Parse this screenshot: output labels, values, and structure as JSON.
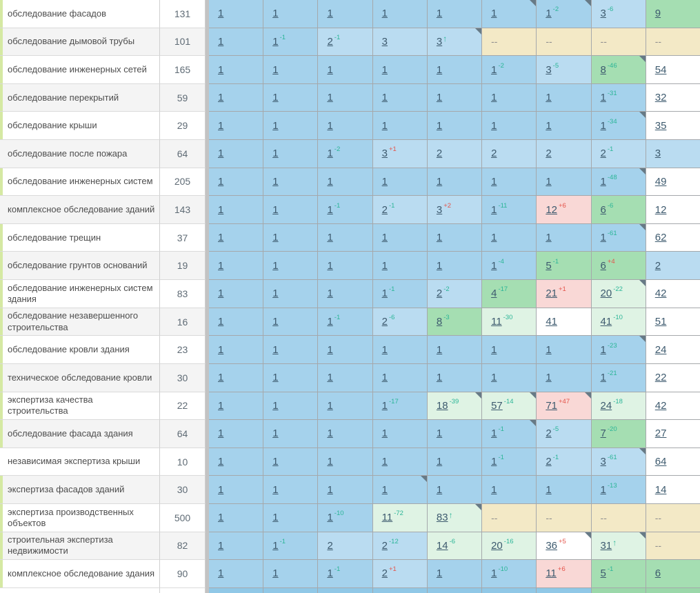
{
  "palette": {
    "row_white": "#ffffff",
    "row_grey": "#f4f4f4",
    "tag_green": "#d5e9a3",
    "sup_green": "#2bb597",
    "sup_red": "#e4544a",
    "cells": {
      "b1": "#a5d2ec",
      "b2": "#badcf1",
      "g1": "#a5deb2",
      "g2": "#dff3e4",
      "pk": "#f9d8d6",
      "tn": "#f3e9c6",
      "wh": "#ffffff",
      "b0": "#90c8e7",
      "g0": "#9bd8aa"
    }
  },
  "table": {
    "no_data_symbol": "--",
    "rows": [
      {
        "keyword": "обследование фасадов",
        "volume": "131",
        "shade": "white",
        "tag": true,
        "cells": [
          {
            "v": "1",
            "bg": "b1"
          },
          {
            "v": "1",
            "bg": "b1"
          },
          {
            "v": "1",
            "bg": "b1"
          },
          {
            "v": "1",
            "bg": "b1"
          },
          {
            "v": "1",
            "bg": "b1"
          },
          {
            "v": "1",
            "bg": "b1",
            "note": true
          },
          {
            "v": "1",
            "bg": "b1",
            "sup": "-2",
            "note": true
          },
          {
            "v": "3",
            "bg": "b2",
            "sup": "-6"
          },
          {
            "v": "9",
            "bg": "g1"
          }
        ]
      },
      {
        "keyword": "обследование дымовой трубы",
        "volume": "101",
        "shade": "grey",
        "tag": true,
        "cells": [
          {
            "v": "1",
            "bg": "b1"
          },
          {
            "v": "1",
            "bg": "b1",
            "sup": "-1"
          },
          {
            "v": "2",
            "bg": "b2",
            "sup": "-1"
          },
          {
            "v": "3",
            "bg": "b2"
          },
          {
            "v": "3",
            "bg": "b2",
            "sup": "↑",
            "note": true
          },
          {
            "v": "--",
            "bg": "tn"
          },
          {
            "v": "--",
            "bg": "tn"
          },
          {
            "v": "--",
            "bg": "tn"
          },
          {
            "v": "--",
            "bg": "tn"
          }
        ]
      },
      {
        "keyword": "обследование инженерных сетей",
        "volume": "165",
        "shade": "white",
        "tag": true,
        "cells": [
          {
            "v": "1",
            "bg": "b1"
          },
          {
            "v": "1",
            "bg": "b1"
          },
          {
            "v": "1",
            "bg": "b1"
          },
          {
            "v": "1",
            "bg": "b1"
          },
          {
            "v": "1",
            "bg": "b1"
          },
          {
            "v": "1",
            "bg": "b1",
            "sup": "-2"
          },
          {
            "v": "3",
            "bg": "b2",
            "sup": "-5"
          },
          {
            "v": "8",
            "bg": "g1",
            "sup": "-46",
            "note": true
          },
          {
            "v": "54",
            "bg": "wh"
          }
        ]
      },
      {
        "keyword": "обследование перекрытий",
        "volume": "59",
        "shade": "grey",
        "tag": true,
        "cells": [
          {
            "v": "1",
            "bg": "b1"
          },
          {
            "v": "1",
            "bg": "b1"
          },
          {
            "v": "1",
            "bg": "b1"
          },
          {
            "v": "1",
            "bg": "b1"
          },
          {
            "v": "1",
            "bg": "b1"
          },
          {
            "v": "1",
            "bg": "b1"
          },
          {
            "v": "1",
            "bg": "b1"
          },
          {
            "v": "1",
            "bg": "b1",
            "sup": "-31"
          },
          {
            "v": "32",
            "bg": "wh"
          }
        ]
      },
      {
        "keyword": "обследование крыши",
        "volume": "29",
        "shade": "white",
        "tag": true,
        "cells": [
          {
            "v": "1",
            "bg": "b1"
          },
          {
            "v": "1",
            "bg": "b1"
          },
          {
            "v": "1",
            "bg": "b1"
          },
          {
            "v": "1",
            "bg": "b1"
          },
          {
            "v": "1",
            "bg": "b1"
          },
          {
            "v": "1",
            "bg": "b1"
          },
          {
            "v": "1",
            "bg": "b1"
          },
          {
            "v": "1",
            "bg": "b1",
            "sup": "-34",
            "note": true
          },
          {
            "v": "35",
            "bg": "wh"
          }
        ]
      },
      {
        "keyword": "обследование после пожара",
        "volume": "64",
        "shade": "grey",
        "tag": false,
        "cells": [
          {
            "v": "1",
            "bg": "b1"
          },
          {
            "v": "1",
            "bg": "b1"
          },
          {
            "v": "1",
            "bg": "b1",
            "sup": "-2"
          },
          {
            "v": "3",
            "bg": "b2",
            "sup": "+1"
          },
          {
            "v": "2",
            "bg": "b2"
          },
          {
            "v": "2",
            "bg": "b2"
          },
          {
            "v": "2",
            "bg": "b2"
          },
          {
            "v": "2",
            "bg": "b2",
            "sup": "-1"
          },
          {
            "v": "3",
            "bg": "b2"
          }
        ]
      },
      {
        "keyword": "обследование инженерных систем",
        "volume": "205",
        "shade": "white",
        "tag": true,
        "cells": [
          {
            "v": "1",
            "bg": "b1"
          },
          {
            "v": "1",
            "bg": "b1"
          },
          {
            "v": "1",
            "bg": "b1"
          },
          {
            "v": "1",
            "bg": "b1"
          },
          {
            "v": "1",
            "bg": "b1"
          },
          {
            "v": "1",
            "bg": "b1"
          },
          {
            "v": "1",
            "bg": "b1"
          },
          {
            "v": "1",
            "bg": "b1",
            "sup": "-48",
            "note": true
          },
          {
            "v": "49",
            "bg": "wh"
          }
        ]
      },
      {
        "keyword": "комплексное обследование зданий",
        "volume": "143",
        "shade": "grey",
        "tag": false,
        "cells": [
          {
            "v": "1",
            "bg": "b1"
          },
          {
            "v": "1",
            "bg": "b1"
          },
          {
            "v": "1",
            "bg": "b1",
            "sup": "-1"
          },
          {
            "v": "2",
            "bg": "b2",
            "sup": "-1"
          },
          {
            "v": "3",
            "bg": "b2",
            "sup": "+2"
          },
          {
            "v": "1",
            "bg": "b1",
            "sup": "-11"
          },
          {
            "v": "12",
            "bg": "pk",
            "sup": "+6"
          },
          {
            "v": "6",
            "bg": "g1",
            "sup": "-6"
          },
          {
            "v": "12",
            "bg": "wh"
          }
        ]
      },
      {
        "keyword": "обследование трещин",
        "volume": "37",
        "shade": "white",
        "tag": true,
        "cells": [
          {
            "v": "1",
            "bg": "b1"
          },
          {
            "v": "1",
            "bg": "b1"
          },
          {
            "v": "1",
            "bg": "b1"
          },
          {
            "v": "1",
            "bg": "b1"
          },
          {
            "v": "1",
            "bg": "b1"
          },
          {
            "v": "1",
            "bg": "b1"
          },
          {
            "v": "1",
            "bg": "b1"
          },
          {
            "v": "1",
            "bg": "b1",
            "sup": "-61",
            "note": true
          },
          {
            "v": "62",
            "bg": "wh"
          }
        ]
      },
      {
        "keyword": "обследование грунтов оснований",
        "volume": "19",
        "shade": "grey",
        "tag": true,
        "cells": [
          {
            "v": "1",
            "bg": "b1"
          },
          {
            "v": "1",
            "bg": "b1"
          },
          {
            "v": "1",
            "bg": "b1"
          },
          {
            "v": "1",
            "bg": "b1"
          },
          {
            "v": "1",
            "bg": "b1"
          },
          {
            "v": "1",
            "bg": "b1",
            "sup": "-4"
          },
          {
            "v": "5",
            "bg": "g1",
            "sup": "-1"
          },
          {
            "v": "6",
            "bg": "g1",
            "sup": "+4"
          },
          {
            "v": "2",
            "bg": "b2"
          }
        ]
      },
      {
        "keyword": "обследование инженерных систем здания",
        "volume": "83",
        "shade": "white",
        "tag": true,
        "cells": [
          {
            "v": "1",
            "bg": "b1"
          },
          {
            "v": "1",
            "bg": "b1"
          },
          {
            "v": "1",
            "bg": "b1"
          },
          {
            "v": "1",
            "bg": "b1",
            "sup": "-1"
          },
          {
            "v": "2",
            "bg": "b2",
            "sup": "-2"
          },
          {
            "v": "4",
            "bg": "g1",
            "sup": "-17"
          },
          {
            "v": "21",
            "bg": "pk",
            "sup": "+1"
          },
          {
            "v": "20",
            "bg": "g2",
            "sup": "-22",
            "note": true
          },
          {
            "v": "42",
            "bg": "wh"
          }
        ]
      },
      {
        "keyword": "обследование незавершенного строительства",
        "volume": "16",
        "shade": "grey",
        "tag": true,
        "cells": [
          {
            "v": "1",
            "bg": "b1"
          },
          {
            "v": "1",
            "bg": "b1"
          },
          {
            "v": "1",
            "bg": "b1",
            "sup": "-1"
          },
          {
            "v": "2",
            "bg": "b2",
            "sup": "-6"
          },
          {
            "v": "8",
            "bg": "g1",
            "sup": "-3"
          },
          {
            "v": "11",
            "bg": "g2",
            "sup": "-30"
          },
          {
            "v": "41",
            "bg": "wh"
          },
          {
            "v": "41",
            "bg": "g2",
            "sup": "-10"
          },
          {
            "v": "51",
            "bg": "wh"
          }
        ]
      },
      {
        "keyword": "обследование кровли здания",
        "volume": "23",
        "shade": "white",
        "tag": true,
        "cells": [
          {
            "v": "1",
            "bg": "b1"
          },
          {
            "v": "1",
            "bg": "b1"
          },
          {
            "v": "1",
            "bg": "b1"
          },
          {
            "v": "1",
            "bg": "b1"
          },
          {
            "v": "1",
            "bg": "b1"
          },
          {
            "v": "1",
            "bg": "b1"
          },
          {
            "v": "1",
            "bg": "b1"
          },
          {
            "v": "1",
            "bg": "b1",
            "sup": "-23",
            "note": true
          },
          {
            "v": "24",
            "bg": "wh"
          }
        ]
      },
      {
        "keyword": "техническое обследование кровли",
        "volume": "30",
        "shade": "grey",
        "tag": true,
        "cells": [
          {
            "v": "1",
            "bg": "b1"
          },
          {
            "v": "1",
            "bg": "b1"
          },
          {
            "v": "1",
            "bg": "b1"
          },
          {
            "v": "1",
            "bg": "b1"
          },
          {
            "v": "1",
            "bg": "b1"
          },
          {
            "v": "1",
            "bg": "b1"
          },
          {
            "v": "1",
            "bg": "b1"
          },
          {
            "v": "1",
            "bg": "b1",
            "sup": "-21"
          },
          {
            "v": "22",
            "bg": "wh"
          }
        ]
      },
      {
        "keyword": "экспертиза качества строительства",
        "volume": "22",
        "shade": "white",
        "tag": true,
        "cells": [
          {
            "v": "1",
            "bg": "b1"
          },
          {
            "v": "1",
            "bg": "b1"
          },
          {
            "v": "1",
            "bg": "b1"
          },
          {
            "v": "1",
            "bg": "b1",
            "sup": "-17"
          },
          {
            "v": "18",
            "bg": "g2",
            "sup": "-39",
            "note": true
          },
          {
            "v": "57",
            "bg": "g2",
            "sup": "-14",
            "note": true
          },
          {
            "v": "71",
            "bg": "pk",
            "sup": "+47",
            "note": true
          },
          {
            "v": "24",
            "bg": "g2",
            "sup": "-18"
          },
          {
            "v": "42",
            "bg": "wh"
          }
        ]
      },
      {
        "keyword": "обследование фасада здания",
        "volume": "64",
        "shade": "grey",
        "tag": true,
        "cells": [
          {
            "v": "1",
            "bg": "b1"
          },
          {
            "v": "1",
            "bg": "b1"
          },
          {
            "v": "1",
            "bg": "b1"
          },
          {
            "v": "1",
            "bg": "b1"
          },
          {
            "v": "1",
            "bg": "b1"
          },
          {
            "v": "1",
            "bg": "b1",
            "sup": "-1",
            "note": true
          },
          {
            "v": "2",
            "bg": "b2",
            "sup": "-5"
          },
          {
            "v": "7",
            "bg": "g1",
            "sup": "-20"
          },
          {
            "v": "27",
            "bg": "wh"
          }
        ]
      },
      {
        "keyword": "независимая экспертиза крыши",
        "volume": "10",
        "shade": "white",
        "tag": false,
        "cells": [
          {
            "v": "1",
            "bg": "b1"
          },
          {
            "v": "1",
            "bg": "b1"
          },
          {
            "v": "1",
            "bg": "b1"
          },
          {
            "v": "1",
            "bg": "b1"
          },
          {
            "v": "1",
            "bg": "b1"
          },
          {
            "v": "1",
            "bg": "b1",
            "sup": "-1"
          },
          {
            "v": "2",
            "bg": "b2",
            "sup": "-1"
          },
          {
            "v": "3",
            "bg": "b2",
            "sup": "-61",
            "note": true
          },
          {
            "v": "64",
            "bg": "wh"
          }
        ]
      },
      {
        "keyword": "экспертиза фасадов зданий",
        "volume": "30",
        "shade": "grey",
        "tag": true,
        "cells": [
          {
            "v": "1",
            "bg": "b1"
          },
          {
            "v": "1",
            "bg": "b1"
          },
          {
            "v": "1",
            "bg": "b1"
          },
          {
            "v": "1",
            "bg": "b1",
            "note": true
          },
          {
            "v": "1",
            "bg": "b1"
          },
          {
            "v": "1",
            "bg": "b1"
          },
          {
            "v": "1",
            "bg": "b1"
          },
          {
            "v": "1",
            "bg": "b1",
            "sup": "-13"
          },
          {
            "v": "14",
            "bg": "wh"
          }
        ]
      },
      {
        "keyword": "экспертиза производственных объектов",
        "volume": "500",
        "shade": "white",
        "tag": true,
        "cells": [
          {
            "v": "1",
            "bg": "b1"
          },
          {
            "v": "1",
            "bg": "b1"
          },
          {
            "v": "1",
            "bg": "b1",
            "sup": "-10"
          },
          {
            "v": "11",
            "bg": "g2",
            "sup": "-72"
          },
          {
            "v": "83",
            "bg": "g2",
            "sup": "↑",
            "note": true
          },
          {
            "v": "--",
            "bg": "tn"
          },
          {
            "v": "--",
            "bg": "tn"
          },
          {
            "v": "--",
            "bg": "tn"
          },
          {
            "v": "--",
            "bg": "tn"
          }
        ]
      },
      {
        "keyword": "строительная экспертиза недвижимости",
        "volume": "82",
        "shade": "grey",
        "tag": true,
        "cells": [
          {
            "v": "1",
            "bg": "b1"
          },
          {
            "v": "1",
            "bg": "b1",
            "sup": "-1"
          },
          {
            "v": "2",
            "bg": "b2"
          },
          {
            "v": "2",
            "bg": "b2",
            "sup": "-12"
          },
          {
            "v": "14",
            "bg": "g2",
            "sup": "-6"
          },
          {
            "v": "20",
            "bg": "g2",
            "sup": "-16"
          },
          {
            "v": "36",
            "bg": "wh",
            "sup": "+5",
            "note": true
          },
          {
            "v": "31",
            "bg": "g2",
            "sup": "↑",
            "note": true
          },
          {
            "v": "--",
            "bg": "tn"
          }
        ]
      },
      {
        "keyword": "комплексное обследование здания",
        "volume": "90",
        "shade": "white",
        "tag": true,
        "cells": [
          {
            "v": "1",
            "bg": "b1"
          },
          {
            "v": "1",
            "bg": "b1"
          },
          {
            "v": "1",
            "bg": "b1",
            "sup": "-1"
          },
          {
            "v": "2",
            "bg": "b2",
            "sup": "+1"
          },
          {
            "v": "1",
            "bg": "b1"
          },
          {
            "v": "1",
            "bg": "b1",
            "sup": "-10"
          },
          {
            "v": "11",
            "bg": "pk",
            "sup": "+6"
          },
          {
            "v": "5",
            "bg": "g1",
            "sup": "-1"
          },
          {
            "v": "6",
            "bg": "g1"
          }
        ]
      }
    ],
    "partial_next_row": {
      "cells_bg": [
        "b0",
        "b0",
        "b0",
        "b0",
        "b0",
        "b0",
        "b0",
        "g0",
        "g0"
      ]
    }
  }
}
